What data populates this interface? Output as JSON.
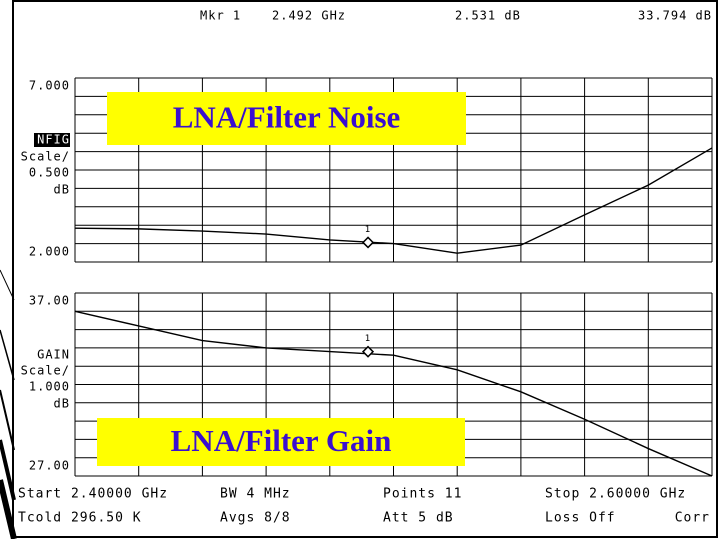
{
  "header": {
    "marker": "Mkr 1",
    "frequency": "2.492 GHz",
    "noise": "2.531 dB",
    "gain": "33.794 dB"
  },
  "footer": [
    [
      "Start 2.40000 GHz",
      "BW 4 MHz",
      "Points 11",
      "Stop 2.60000 GHz"
    ],
    [
      "Tcold 296.50 K",
      "Avgs 8/8",
      "Att 5 dB",
      "Loss Off",
      "Corr"
    ]
  ],
  "chart_data": [
    {
      "type": "line",
      "title": "LNA/Filter Noise",
      "ylabel": [
        "NFIG",
        "Scale/",
        "0.500",
        "dB"
      ],
      "x": [
        2.4,
        2.42,
        2.44,
        2.46,
        2.48,
        2.5,
        2.52,
        2.54,
        2.56,
        2.58,
        2.6
      ],
      "values": [
        2.92,
        2.9,
        2.84,
        2.76,
        2.6,
        2.5,
        2.24,
        2.46,
        3.28,
        4.09,
        5.1
      ],
      "xlim": [
        2.4,
        2.6
      ],
      "ylim": [
        2.0,
        7.0
      ],
      "yticks": [
        {
          "value": 7.0,
          "label": "7.000"
        },
        {
          "value": 2.0,
          "label": "2.000"
        }
      ],
      "ydivisions": 10,
      "color": "#000000",
      "marker": {
        "label": "1",
        "x": 2.492,
        "value": 2.531
      }
    },
    {
      "type": "line",
      "title": "LNA/Filter Gain",
      "ylabel": [
        "GAIN",
        "Scale/",
        "1.000",
        "dB"
      ],
      "x": [
        2.4,
        2.42,
        2.44,
        2.46,
        2.48,
        2.5,
        2.52,
        2.54,
        2.56,
        2.58,
        2.6
      ],
      "values": [
        36.0,
        35.2,
        34.4,
        34.0,
        33.8,
        33.6,
        32.8,
        31.6,
        30.1,
        28.5,
        27.0
      ],
      "xlim": [
        2.4,
        2.6
      ],
      "ylim": [
        27.0,
        37.0
      ],
      "yticks": [
        {
          "value": 37.0,
          "label": "37.00"
        },
        {
          "value": 27.0,
          "label": "27.00"
        }
      ],
      "ydivisions": 10,
      "color": "#000000",
      "marker": {
        "label": "1",
        "x": 2.492,
        "value": 33.794
      }
    }
  ]
}
